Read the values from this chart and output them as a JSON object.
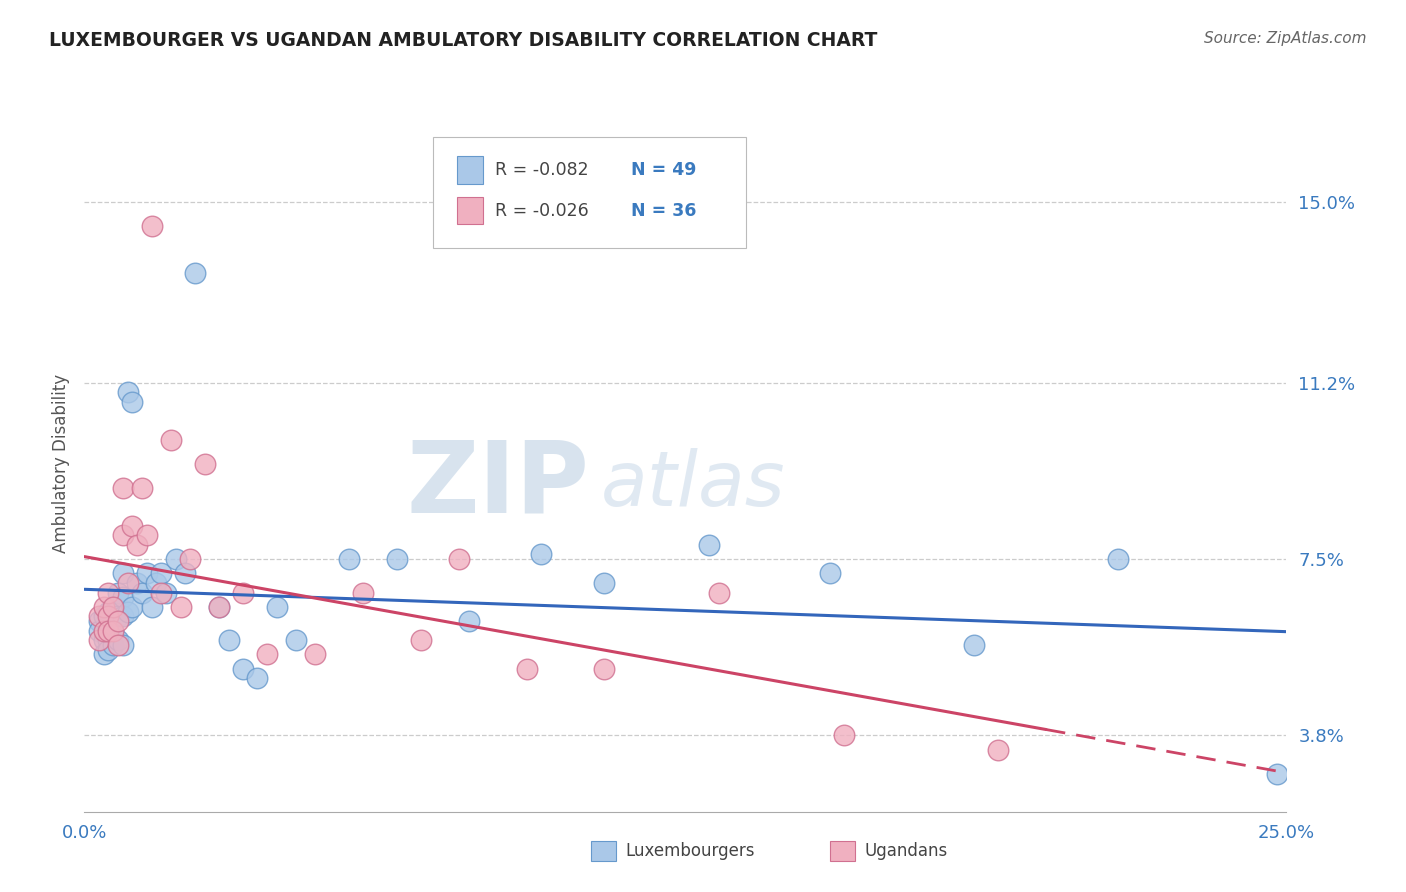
{
  "title": "LUXEMBOURGER VS UGANDAN AMBULATORY DISABILITY CORRELATION CHART",
  "source": "Source: ZipAtlas.com",
  "ylabel": "Ambulatory Disability",
  "xlim": [
    0.0,
    0.25
  ],
  "ylim": [
    0.022,
    0.168
  ],
  "xticks": [
    0.0,
    0.05,
    0.1,
    0.15,
    0.2,
    0.25
  ],
  "xticklabels": [
    "0.0%",
    "",
    "",
    "",
    "",
    "25.0%"
  ],
  "ytick_positions": [
    0.038,
    0.075,
    0.112,
    0.15
  ],
  "ytick_labels": [
    "3.8%",
    "7.5%",
    "11.2%",
    "15.0%"
  ],
  "grid_color": "#cccccc",
  "blue_fill": "#aac8e8",
  "blue_edge": "#6699cc",
  "pink_fill": "#f0b0c0",
  "pink_edge": "#d07090",
  "blue_line_color": "#3366bb",
  "pink_line_color": "#cc4466",
  "accent_color": "#3a7abf",
  "legend_R_blue": "R = -0.082",
  "legend_N_blue": "N = 49",
  "legend_R_pink": "R = -0.026",
  "legend_N_pink": "N = 36",
  "label_blue": "Luxembourgers",
  "label_pink": "Ugandans",
  "watermark_zip": "ZIP",
  "watermark_atlas": "atlas",
  "blue_x": [
    0.003,
    0.003,
    0.004,
    0.004,
    0.004,
    0.005,
    0.005,
    0.005,
    0.005,
    0.006,
    0.006,
    0.006,
    0.007,
    0.007,
    0.007,
    0.008,
    0.008,
    0.008,
    0.008,
    0.009,
    0.009,
    0.01,
    0.01,
    0.011,
    0.012,
    0.013,
    0.014,
    0.015,
    0.016,
    0.017,
    0.019,
    0.021,
    0.023,
    0.028,
    0.03,
    0.033,
    0.036,
    0.04,
    0.044,
    0.055,
    0.065,
    0.08,
    0.095,
    0.108,
    0.13,
    0.155,
    0.185,
    0.215,
    0.248
  ],
  "blue_y": [
    0.062,
    0.06,
    0.063,
    0.058,
    0.055,
    0.064,
    0.061,
    0.058,
    0.056,
    0.065,
    0.06,
    0.057,
    0.068,
    0.063,
    0.058,
    0.072,
    0.067,
    0.063,
    0.057,
    0.11,
    0.064,
    0.108,
    0.065,
    0.07,
    0.068,
    0.072,
    0.065,
    0.07,
    0.072,
    0.068,
    0.075,
    0.072,
    0.135,
    0.065,
    0.058,
    0.052,
    0.05,
    0.065,
    0.058,
    0.075,
    0.075,
    0.062,
    0.076,
    0.07,
    0.078,
    0.072,
    0.057,
    0.075,
    0.03
  ],
  "pink_x": [
    0.003,
    0.003,
    0.004,
    0.004,
    0.005,
    0.005,
    0.005,
    0.006,
    0.006,
    0.007,
    0.007,
    0.008,
    0.008,
    0.009,
    0.01,
    0.011,
    0.012,
    0.013,
    0.014,
    0.016,
    0.018,
    0.02,
    0.022,
    0.025,
    0.028,
    0.033,
    0.038,
    0.048,
    0.058,
    0.07,
    0.078,
    0.092,
    0.108,
    0.132,
    0.158,
    0.19
  ],
  "pink_y": [
    0.063,
    0.058,
    0.065,
    0.06,
    0.068,
    0.063,
    0.06,
    0.065,
    0.06,
    0.062,
    0.057,
    0.09,
    0.08,
    0.07,
    0.082,
    0.078,
    0.09,
    0.08,
    0.145,
    0.068,
    0.1,
    0.065,
    0.075,
    0.095,
    0.065,
    0.068,
    0.055,
    0.055,
    0.068,
    0.058,
    0.075,
    0.052,
    0.052,
    0.068,
    0.038,
    0.035
  ]
}
